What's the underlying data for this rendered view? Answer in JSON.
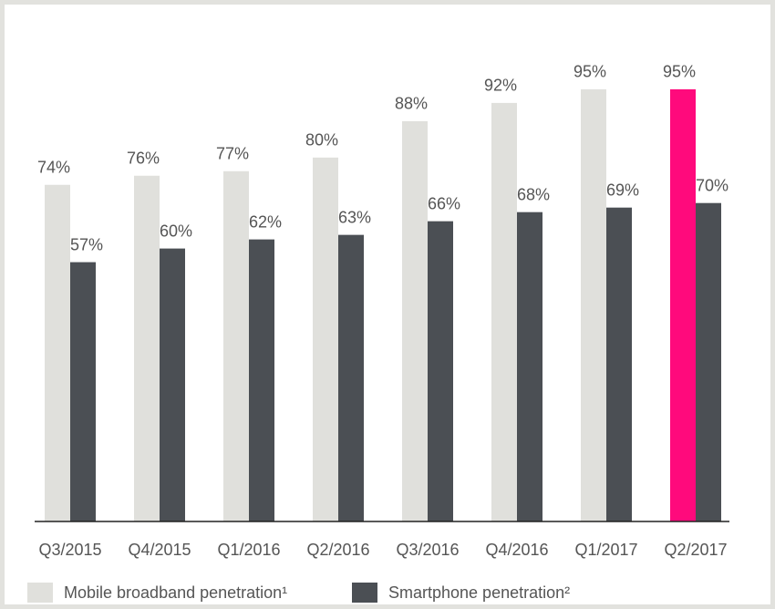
{
  "chart_data": {
    "type": "bar",
    "categories": [
      "Q3/2015",
      "Q4/2015",
      "Q1/2016",
      "Q2/2016",
      "Q3/2016",
      "Q4/2016",
      "Q1/2017",
      "Q2/2017"
    ],
    "series": [
      {
        "name": "Mobile broadband penetration¹",
        "color": "#e0e0dc",
        "colors": [
          "#e0e0dc",
          "#e0e0dc",
          "#e0e0dc",
          "#e0e0dc",
          "#e0e0dc",
          "#e0e0dc",
          "#e0e0dc",
          "#ff0a7c"
        ],
        "values": [
          74,
          76,
          77,
          80,
          88,
          92,
          95,
          95
        ],
        "value_labels": [
          "74%",
          "76%",
          "77%",
          "80%",
          "88%",
          "92%",
          "95%",
          "95%"
        ]
      },
      {
        "name": "Smartphone penetration²",
        "color": "#4b4f54",
        "values": [
          57,
          60,
          62,
          63,
          66,
          68,
          69,
          70
        ],
        "value_labels": [
          "57%",
          "60%",
          "62%",
          "63%",
          "66%",
          "68%",
          "69%",
          "70%"
        ]
      }
    ],
    "legend": "bottom-left"
  }
}
